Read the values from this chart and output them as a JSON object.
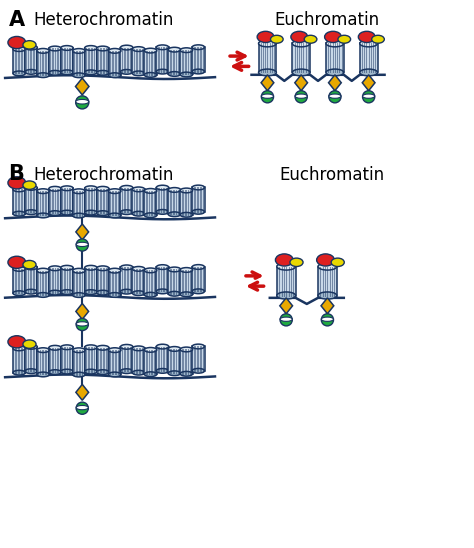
{
  "bg_color": "#ffffff",
  "label_A": "A",
  "label_B": "B",
  "hetero_label": "Heterochromatin",
  "eu_label": "Euchromatin",
  "colors": {
    "cyl_face": "#c8d8e8",
    "cyl_top": "#dde8f0",
    "cyl_shadow": "#a0b8cc",
    "cyl_outline": "#1a3560",
    "dna_line": "#1a3560",
    "red_oval": "#dd2020",
    "yellow_oval": "#e8d800",
    "yellow_diamond": "#e8a800",
    "green_circle": "#20aa40",
    "red_arrow": "#cc1010"
  },
  "font_sizes": {
    "label_AB": 15,
    "section_title": 12
  }
}
